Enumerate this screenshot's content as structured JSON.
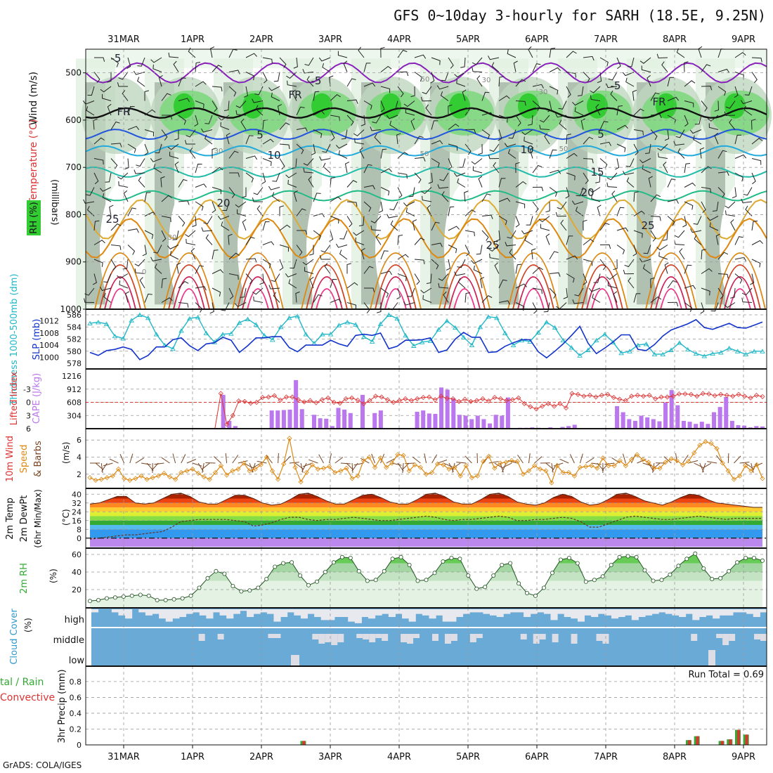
{
  "title": "GFS 0~10day 3-hourly for SARH (18.5E, 9.25N)",
  "credit": "GrADS: COLA/IGES",
  "colors": {
    "rh_light": "#e3f2e3",
    "rh_mid": "#bfd6bf",
    "rh_gray": "#9fb09f",
    "rh_green": "#7fd77f",
    "rh_bright": "#33cc33",
    "thickness": "#22b8c8",
    "slp": "#1133cc",
    "cape": "#bb77ee",
    "lifted": "#dd3333",
    "wind": "#dd8811",
    "barb": "#774422",
    "rh2m": "#33aa33",
    "cloud": "#6aaad6",
    "cloud_gap": "#e8e8ef",
    "precip_total": "#33aa33",
    "precip_conv": "#dd3333"
  },
  "chart_data": [
    {
      "panel": "upper",
      "type": "heatmap",
      "date_labels": [
        "31MAR",
        "1APR",
        "2APR",
        "3APR",
        "4APR",
        "5APR",
        "6APR",
        "7APR",
        "8APR",
        "9APR"
      ],
      "ylabel": "(millibars)",
      "ylabel_chars": "millibars",
      "side_labels": {
        "wind": "Wind (m/s)",
        "temp": "Temperature (°C)",
        "rh": "RH (%)"
      },
      "y_ticks": [
        500,
        600,
        700,
        800,
        900,
        1000
      ],
      "ylim": [
        1000,
        450
      ],
      "temperature_labels": [
        "-5",
        "-5",
        "-5",
        "FR",
        "FR",
        "FR",
        "5",
        "5",
        "10",
        "10",
        "15",
        "20",
        "20",
        "25",
        "25",
        "25",
        "30",
        "0",
        "30",
        "50",
        "50",
        "30",
        "30",
        "50"
      ],
      "freezing_level_mb": 585
    },
    {
      "panel": "thickness_slp",
      "type": "line",
      "ylabel_left": "Thickness 1000-500mb (dm)",
      "ylabel_right": "SLP (mb)",
      "left_ticks": [
        "586",
        "584",
        "582",
        "580",
        "578"
      ],
      "right_ticks": [
        "1012",
        "1008",
        "1004",
        "1000"
      ],
      "thickness_dm": [
        584.6,
        584.8,
        584.5,
        582.5,
        582.1,
        585.1,
        586.0,
        585.5,
        582.8,
        581.0,
        580.4,
        583.4,
        585.4,
        585.6,
        583.0,
        581.5,
        582.8,
        582.9,
        584.7,
        585.3,
        584.4,
        582.6,
        581.9,
        584.0,
        585.5,
        585.8,
        582.8,
        581.3,
        582.8,
        582.8,
        584.3,
        584.8,
        584.4,
        582.4,
        581.6,
        584.5,
        586.0,
        585.4,
        582.6,
        580.9,
        581.5,
        581.7,
        583.6,
        585.0,
        583.9,
        582.3,
        581.0,
        584.0,
        585.7,
        585.5,
        583.0,
        581.0,
        581.8,
        581.6,
        583.1,
        584.8,
        583.9,
        581.8,
        580.6,
        579.3,
        580.2,
        581.8,
        582.8,
        581.5,
        579.7,
        580.0,
        581.0,
        581.2,
        579.5,
        579.5,
        580.2,
        581.4,
        580.3,
        579.6,
        579.2,
        579.6,
        579.8,
        580.5,
        580.0,
        579.5,
        580.0,
        580.0
      ],
      "slp_mb": [
        1001.6,
        1000.6,
        1002.2,
        1002.6,
        1003.4,
        1002.6,
        999.2,
        1000.6,
        1003.4,
        1003.4,
        1005.8,
        1006.4,
        1003.8,
        1002.2,
        1004.4,
        1004.8,
        1006.6,
        1005.6,
        1001.6,
        1003.8,
        1006.4,
        1006.4,
        1006.8,
        1006.8,
        1003.2,
        1001.8,
        1004.0,
        1004.0,
        1004.0,
        1005.6,
        1004.4,
        1003.6,
        1007.2,
        1007.6,
        1007.2,
        1008.0,
        1002.8,
        1003.6,
        1005.6,
        1005.6,
        1005.8,
        1006.4,
        1001.6,
        1002.4,
        1006.0,
        1008.2,
        1006.6,
        1006.6,
        1001.6,
        1001.8,
        1003.6,
        1004.8,
        1005.8,
        1005.8,
        1001.8,
        999.8,
        1002.0,
        1004.4,
        1007.2,
        1010.2,
        1004.6,
        1001.2,
        1003.0,
        1005.0,
        1007.4,
        1007.4,
        1002.6,
        1002.2,
        1004.2,
        1007.0,
        1009.0,
        1010.0,
        1011.0,
        1012.4,
        1009.8,
        1009.2,
        1010.2,
        1011.2,
        1009.8,
        1009.6,
        1010.6,
        1011.6
      ]
    },
    {
      "panel": "cape_li",
      "type": "bar",
      "ylabel_left": "Lifted Index",
      "ylabel_right": "CAPE (J/kg)",
      "left_ticks": [
        "-3",
        "0",
        "3",
        "6"
      ],
      "right_ticks": [
        "1216",
        "912",
        "608",
        "304"
      ],
      "cape": [
        0,
        0,
        0,
        0,
        0,
        0,
        0,
        0,
        0,
        0,
        0,
        0,
        0,
        0,
        0,
        0,
        0,
        0,
        0,
        0,
        0,
        0,
        780,
        180,
        60,
        0,
        0,
        0,
        0,
        0,
        420,
        420,
        430,
        440,
        1120,
        450,
        0,
        320,
        240,
        230,
        60,
        480,
        440,
        360,
        0,
        780,
        0,
        360,
        420,
        0,
        0,
        0,
        0,
        0,
        390,
        420,
        350,
        340,
        950,
        900,
        700,
        320,
        300,
        220,
        300,
        220,
        120,
        320,
        300,
        720,
        0,
        20,
        20,
        30,
        20,
        10,
        30,
        0,
        40,
        60,
        90,
        0,
        0,
        0,
        0,
        0,
        0,
        520,
        380,
        220,
        180,
        300,
        260,
        220,
        170,
        600,
        890,
        540,
        180,
        160,
        110,
        160,
        110,
        380,
        500,
        730,
        180,
        80,
        70,
        30,
        60,
        50
      ],
      "lifted_index": [
        6,
        6,
        6,
        6,
        6,
        6,
        6,
        6,
        6,
        6,
        6,
        6,
        6,
        6,
        6,
        6,
        6,
        6,
        6,
        6,
        6,
        6,
        -2,
        5,
        3,
        -0.3,
        -0.2,
        0.2,
        0,
        -1.1,
        -1.2,
        -1.5,
        -0.5,
        -1.2,
        -1.2,
        -0.6,
        -0.1,
        -0.4,
        0.1,
        -0.6,
        -1,
        0,
        0.2,
        -0.8,
        -1,
        -0.5,
        0.3,
        -0.4,
        -1.4,
        -1.2,
        -0.6,
        0,
        -0.4,
        -0.8,
        -0.4,
        -0.8,
        -1.1,
        -1.2,
        -0.6,
        -1.4,
        -0.9,
        -0.8,
        -0.2,
        -0.7,
        -0.2,
        -0.4,
        -0.8,
        -0.3,
        -1.1,
        -0.8,
        -0.4,
        -0.6,
        -1.0,
        0.3,
        1,
        1.5,
        0.9,
        0.3,
        0.9,
        0.3,
        1.3,
        -2.0,
        -1.8,
        -1.4,
        -1.6,
        -1.2,
        -1.6,
        -1.8,
        -1.1,
        -0.7,
        -0.4,
        -1.4,
        -1.6,
        -1.4,
        -1.6,
        -0.8,
        -1.2,
        -1.2,
        -1.4,
        -1.9,
        -1.9,
        -1.8,
        -1.4,
        -2.0,
        -1.9,
        -1.5,
        -1.8,
        -1.6,
        -1.4,
        -1.8,
        -1.4,
        -1.0,
        -1.6,
        -1.3
      ]
    },
    {
      "panel": "wind10m",
      "type": "line",
      "ylabel": "10m Wind Speed & Barbs (m/s)",
      "y_ticks": [
        "6",
        "4",
        "2"
      ],
      "speed_ms": [
        1.6,
        1.3,
        1.4,
        1.6,
        1.8,
        2.6,
        1.5,
        1.3,
        1.5,
        1.8,
        1.4,
        1.6,
        1.8,
        2.1,
        1.7,
        1.4,
        2.2,
        2.4,
        2.6,
        2.1,
        1.7,
        1.4,
        2.2,
        3.0,
        1.9,
        2.4,
        2.6,
        3.3,
        2.4,
        2.6,
        3.1,
        4.0,
        2.4,
        1.4,
        3.2,
        6.2,
        2.8,
        1.1,
        2.2,
        3.1,
        2.6,
        2.7,
        2.9,
        2.2,
        2.4,
        2.7,
        1.5,
        1.8,
        3.6,
        4.0,
        2.8,
        3.9,
        2.8,
        3.3,
        4.3,
        4.2,
        2.4,
        3.1,
        2.8,
        2.0,
        2.2,
        3.2,
        3.1,
        2.6,
        2.8,
        1.8,
        3.0,
        1.6,
        1.8,
        3.5,
        4.1,
        2.7,
        3.3,
        3.4,
        3.6,
        3.5,
        2.0,
        2.4,
        3.0,
        2.6,
        2.4,
        1.0,
        3.0,
        2.2,
        2.2,
        1.8,
        2.8,
        2.9,
        3.0,
        2.7,
        3.9,
        3.0,
        3.0,
        3.6,
        3.0,
        3.7,
        4.3,
        3.7,
        3.4,
        2.7,
        2.7,
        3.4,
        3.8,
        3.6,
        3.1,
        3.5,
        4.5,
        5.4,
        5.8,
        5.6,
        5.0,
        3.3,
        2.4,
        1.4,
        1.8,
        3.0,
        2.4,
        3.1,
        1.5
      ]
    },
    {
      "panel": "temp2m",
      "type": "area",
      "ylabel": "2m Temp 2m DewPt (6hr Min/Max) (°C)",
      "y_ticks": [
        "40",
        "32",
        "24",
        "16",
        "8",
        "0"
      ],
      "temp_c": [
        31,
        32,
        35,
        38,
        38,
        32,
        31,
        32,
        36,
        40,
        41,
        38,
        33,
        31,
        31,
        35,
        39,
        39,
        36,
        32,
        30,
        31,
        35,
        40,
        41,
        38,
        34,
        31,
        31,
        35,
        39,
        40,
        37,
        33,
        31,
        31,
        35,
        40,
        41,
        38,
        33,
        31,
        31,
        35,
        40,
        41,
        38,
        33,
        31,
        30,
        32,
        37,
        40,
        38,
        33,
        30,
        31,
        35,
        40,
        41,
        38,
        34,
        32,
        30,
        33,
        37,
        40,
        39,
        35,
        32,
        31,
        30,
        29,
        28,
        28
      ],
      "dewpt_c": [
        -1,
        0,
        1,
        2,
        3,
        3,
        4,
        5,
        6,
        10,
        15,
        16,
        17,
        17,
        17,
        17,
        16,
        15,
        11,
        12,
        14,
        17,
        19,
        19,
        17,
        16,
        17,
        17,
        18,
        19,
        18,
        17,
        16,
        16,
        17,
        18,
        19,
        20,
        19,
        17,
        16,
        17,
        17,
        18,
        19,
        20,
        19,
        16,
        16,
        17,
        17,
        18,
        19,
        18,
        15,
        10,
        10,
        13,
        16,
        19,
        20,
        19,
        18,
        17,
        17,
        18,
        19,
        20,
        19,
        18,
        17,
        18,
        18,
        18,
        18
      ]
    },
    {
      "panel": "rh2m",
      "type": "area",
      "ylabel": "2m RH (%)",
      "y_ticks": [
        "60",
        "40",
        "20"
      ],
      "rh_pct": [
        7,
        8,
        10,
        11,
        12,
        13,
        14,
        13,
        8,
        8,
        9,
        10,
        13,
        22,
        33,
        41,
        38,
        24,
        18,
        19,
        22,
        32,
        46,
        50,
        51,
        36,
        25,
        29,
        40,
        51,
        57,
        56,
        41,
        30,
        31,
        41,
        55,
        57,
        48,
        30,
        31,
        39,
        52,
        56,
        55,
        36,
        21,
        23,
        36,
        48,
        50,
        27,
        16,
        13,
        22,
        39,
        54,
        56,
        50,
        29,
        31,
        35,
        48,
        57,
        58,
        57,
        42,
        30,
        31,
        37,
        47,
        55,
        61,
        44,
        32,
        33,
        41,
        51,
        56,
        56,
        53
      ]
    },
    {
      "panel": "cloud",
      "type": "heatmap",
      "ylabel": "Cloud Cover (%)",
      "levels": [
        "high",
        "middle",
        "low"
      ],
      "high_cover": [
        0.2,
        0.0,
        0.0,
        0.2,
        0.4,
        0.6,
        0.0,
        0.2,
        0.4,
        0.3,
        0.6,
        0.8,
        0.6,
        0.5,
        0.3,
        0.2,
        0.4,
        0.6,
        0.2,
        0.4,
        0.6,
        0.3,
        0.1,
        0.5,
        0.3,
        0.2,
        0.3,
        0.8,
        0.5,
        0.2,
        0.4,
        0.6,
        0.3,
        0.5,
        0.7,
        0.7,
        0.5,
        0.5,
        0.8,
        0.9,
        0.5,
        0.6,
        0.4,
        0.3,
        0.5,
        0.3,
        0.6,
        0.8,
        0.3,
        0.4,
        0.6,
        0.4,
        0.8,
        0.8,
        0.5,
        0.3,
        0.2,
        0.2,
        0.3,
        0.4,
        0.5,
        0.3,
        0.2,
        0.2,
        0.5,
        0.3,
        0.2,
        0.3,
        0.7,
        0.3,
        0.5,
        0.6,
        0.8,
        0.4,
        0.5,
        0.3,
        0.4,
        0.6,
        0.5,
        0.4,
        0.7,
        0.5,
        0.4,
        0.3,
        0.2,
        0.3,
        0.4,
        0.5,
        0.3,
        0.7,
        0.5,
        0.4,
        0.6,
        0.4,
        0.4,
        0.2,
        0.2,
        0.3,
        0.5,
        0.2
      ],
      "middle_gap": [
        0,
        0,
        0,
        0,
        0,
        0,
        0,
        0,
        0,
        0,
        0,
        0,
        0,
        0,
        0,
        0,
        0,
        0.5,
        0,
        0,
        0.4,
        0,
        0,
        0,
        0,
        0,
        0,
        0,
        0.3,
        0.3,
        0,
        0,
        0,
        0,
        0,
        0.4,
        0.7,
        0.6,
        0.8,
        0.6,
        0,
        0,
        0.3,
        0.4,
        0.6,
        0.3,
        0.5,
        0,
        0,
        0.6,
        0.7,
        0.3,
        0,
        0,
        0.5,
        0,
        0.7,
        0.5,
        0,
        0,
        0.6,
        0.3,
        0,
        0,
        0,
        0,
        0,
        0,
        0.4,
        0,
        0.7,
        0.4,
        0,
        0.6,
        0,
        0,
        0.7,
        0,
        0,
        0,
        0.5,
        0.7,
        0,
        0,
        0,
        0,
        0,
        0,
        0,
        0,
        0,
        0,
        0,
        0,
        0,
        0.5,
        0,
        0,
        0,
        0.3,
        0.8,
        0.5,
        0,
        0,
        0,
        0.4,
        0.5
      ]
    },
    {
      "panel": "precip",
      "type": "bar",
      "ylabel_left": "Total / Rain Convective",
      "ylabel": "3hr Precip (mm)",
      "annotation": "Run Total = 0.69",
      "y_ticks": [
        "0.8",
        "0.6",
        "0.4",
        "0.2",
        "0"
      ],
      "precip_mm": [
        0,
        0,
        0,
        0,
        0,
        0,
        0,
        0,
        0,
        0,
        0,
        0,
        0,
        0,
        0,
        0,
        0,
        0,
        0,
        0,
        0,
        0,
        0,
        0,
        0,
        0,
        0.05,
        0,
        0,
        0,
        0,
        0,
        0,
        0,
        0,
        0,
        0,
        0,
        0,
        0,
        0,
        0,
        0,
        0,
        0,
        0,
        0,
        0,
        0,
        0,
        0,
        0,
        0,
        0,
        0,
        0,
        0,
        0,
        0,
        0,
        0,
        0,
        0,
        0,
        0,
        0,
        0,
        0,
        0,
        0,
        0,
        0,
        0,
        0.06,
        0.11,
        0,
        0,
        0.05,
        0.07,
        0.19,
        0.13,
        0,
        0
      ]
    }
  ]
}
